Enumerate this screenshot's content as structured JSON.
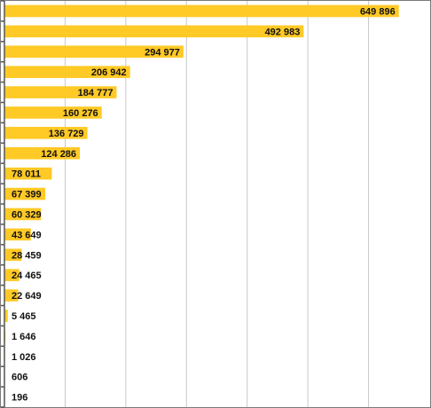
{
  "chart_data": {
    "type": "bar",
    "orientation": "horizontal",
    "title": "",
    "xlabel": "",
    "ylabel": "",
    "categories": [],
    "values": [
      649896,
      492983,
      294977,
      206942,
      184777,
      160276,
      136729,
      124286,
      78011,
      67399,
      60329,
      43649,
      28459,
      24465,
      22649,
      5465,
      1646,
      1026,
      606,
      196
    ],
    "labels": [
      "649 896",
      "492 983",
      "294 977",
      "206 942",
      "184 777",
      "160 276",
      "136 729",
      "124 286",
      "78 011",
      "67 399",
      "60 329",
      "43 649",
      "28 459",
      "24 465",
      "22 649",
      "5 465",
      "1 646",
      "1 026",
      "606",
      "196"
    ],
    "xlim": [
      0,
      700000
    ],
    "gridlines": true,
    "legend": "none",
    "colors": {
      "bar": "#FFC926",
      "grid": "#c8c8c8",
      "axis": "#555555",
      "text": "#111111",
      "border": "#7a7a7a"
    }
  }
}
